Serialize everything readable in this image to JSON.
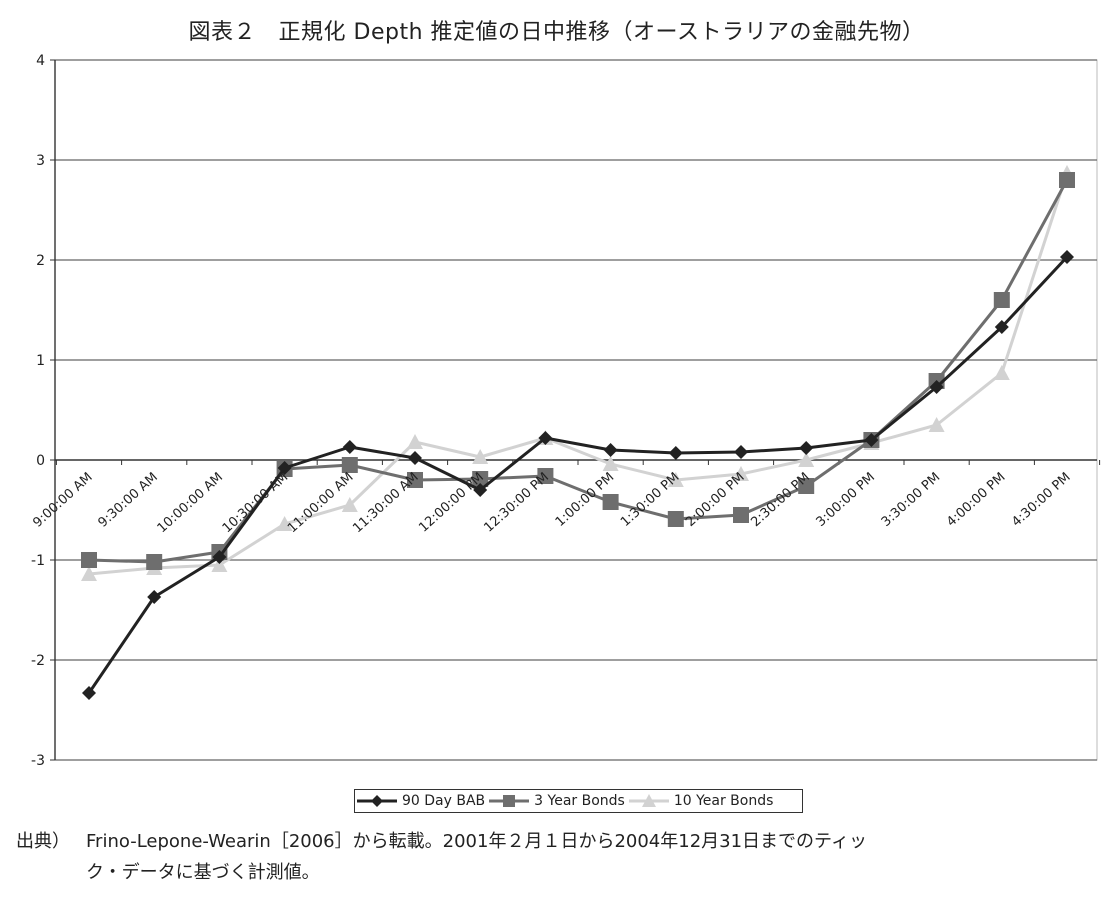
{
  "title": "図表２　正規化 Depth 推定値の日中推移（オーストラリアの金融先物）",
  "chart_data": {
    "type": "line",
    "title": "図表２　正規化 Depth 推定値の日中推移（オーストラリアの金融先物）",
    "categories": [
      "9:00:00 AM",
      "9:30:00 AM",
      "10:00:00 AM",
      "10:30:00 AM",
      "11:00:00 AM",
      "11:30:00 AM",
      "12:00:00 PM",
      "12:30:00 PM",
      "1:00:00 PM",
      "1:30:00 PM",
      "2:00:00 PM",
      "2:30:00 PM",
      "3:00:00 PM",
      "3:30:00 PM",
      "4:00:00 PM",
      "4:30:00 PM"
    ],
    "series": [
      {
        "name": "90 Day BAB",
        "color": "#222222",
        "marker": "diamond",
        "values": [
          -2.33,
          -1.37,
          -0.97,
          -0.08,
          0.13,
          0.02,
          -0.3,
          0.22,
          0.1,
          0.07,
          0.08,
          0.12,
          0.2,
          0.73,
          1.33,
          2.03
        ]
      },
      {
        "name": "3 Year Bonds",
        "color": "#6e6e6e",
        "marker": "square",
        "values": [
          -1.0,
          -1.02,
          -0.92,
          -0.09,
          -0.05,
          -0.2,
          -0.19,
          -0.16,
          -0.42,
          -0.59,
          -0.55,
          -0.26,
          0.2,
          0.79,
          1.6,
          2.8
        ]
      },
      {
        "name": "10 Year Bonds",
        "color": "#d2d2d2",
        "marker": "triangle",
        "values": [
          -1.14,
          -1.08,
          -1.05,
          -0.64,
          -0.45,
          0.18,
          0.03,
          0.22,
          -0.04,
          -0.2,
          -0.14,
          0.0,
          0.17,
          0.35,
          0.87,
          2.87
        ]
      }
    ],
    "ylim": [
      -3,
      4
    ],
    "yticks": [
      -3,
      -2,
      -1,
      0,
      1,
      2,
      3,
      4
    ],
    "grid": true,
    "legend_position": "bottom"
  },
  "source": {
    "label": "出典）",
    "line1": "Frino-Lepone-Wearin［2006］から転載。2001年２月１日から2004年12月31日までのティッ",
    "line2": "ク・データに基づく計測値。"
  }
}
